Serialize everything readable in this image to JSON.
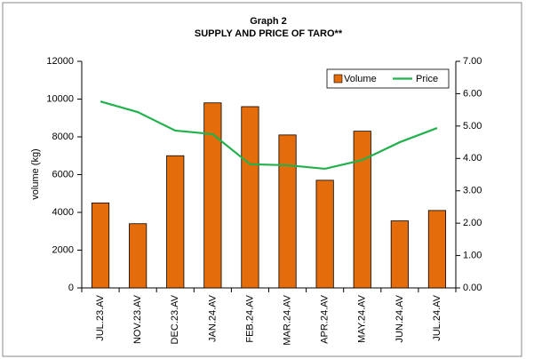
{
  "chart_data": {
    "type": "bar-line",
    "title": "Graph 2",
    "subtitle": "SUPPLY AND PRICE OF TARO**",
    "y_label": "volume (kg)",
    "categories": [
      "JUL.23.AV",
      "NOV.23.AV",
      "DEC.23.AV",
      "JAN.24.AV",
      "FEB.24.AV",
      "MAR.24.AV",
      "APR.24.AV",
      "MAY.24.AV",
      "JUN.24.AV",
      "JUL.24.AV"
    ],
    "series": [
      {
        "name": "Volume",
        "type": "bar",
        "color": "#e46c0a",
        "values": [
          4500,
          3400,
          7000,
          9800,
          9600,
          8100,
          5700,
          8300,
          3550,
          4100
        ]
      },
      {
        "name": "Price",
        "type": "line",
        "axis": "y2",
        "color": "#22b14c",
        "values": [
          5.76,
          5.43,
          4.86,
          4.75,
          3.82,
          3.79,
          3.68,
          3.95,
          4.5,
          4.94
        ]
      }
    ],
    "ylim": [
      0,
      12000
    ],
    "yticks": [
      0,
      2000,
      4000,
      6000,
      8000,
      10000,
      12000
    ],
    "y2lim": [
      0,
      7
    ],
    "y2ticks": [
      {
        "value": 0,
        "label": "0.00"
      },
      {
        "value": 1,
        "label": "1.00"
      },
      {
        "value": 2,
        "label": "2.00"
      },
      {
        "value": 3,
        "label": "3.00"
      },
      {
        "value": 4,
        "label": "4.00"
      },
      {
        "value": 5,
        "label": "5.00"
      },
      {
        "value": 6,
        "label": "6.00"
      },
      {
        "value": 7,
        "label": "7.00"
      }
    ],
    "legend": "upper right"
  }
}
